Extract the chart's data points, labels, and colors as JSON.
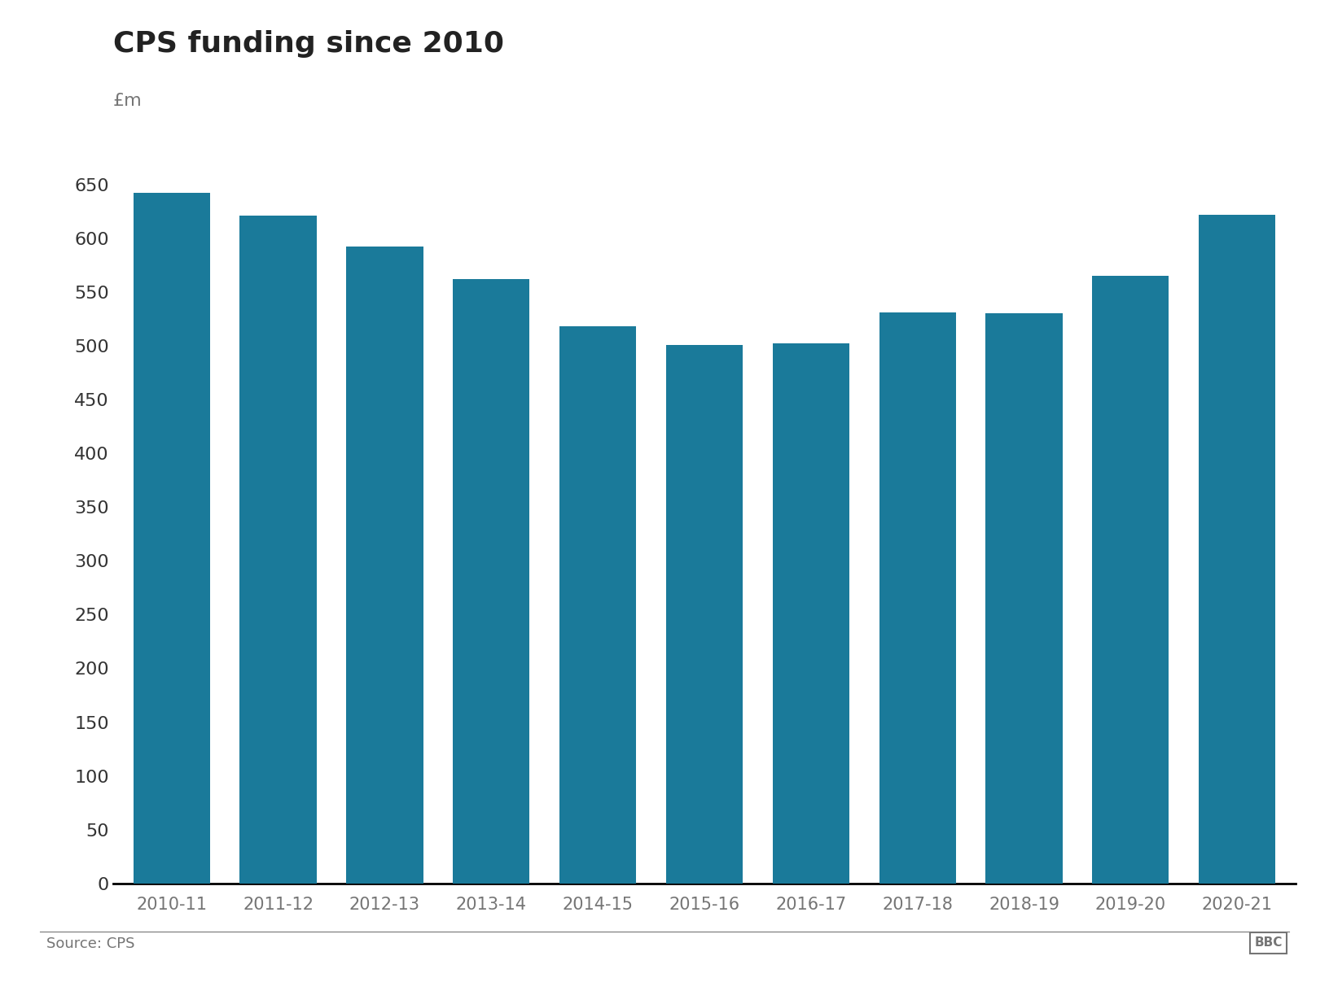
{
  "title": "CPS funding since 2010",
  "ylabel": "£m",
  "categories": [
    "2010-11",
    "2011-12",
    "2012-13",
    "2013-14",
    "2014-15",
    "2015-16",
    "2016-17",
    "2017-18",
    "2018-19",
    "2019-20",
    "2020-21"
  ],
  "values": [
    642,
    621,
    592,
    562,
    518,
    501,
    502,
    531,
    530,
    565,
    622
  ],
  "bar_color": "#1a7a9a",
  "ylim": [
    0,
    700
  ],
  "yticks": [
    0,
    50,
    100,
    150,
    200,
    250,
    300,
    350,
    400,
    450,
    500,
    550,
    600,
    650
  ],
  "title_fontsize": 26,
  "ylabel_fontsize": 16,
  "tick_fontsize": 16,
  "xtick_fontsize": 15,
  "source_text": "Source: CPS",
  "bbc_text": "BBC",
  "background_color": "#ffffff",
  "bottom_spine_color": "#000000",
  "text_color": "#222222",
  "source_color": "#757575",
  "ytick_color": "#333333"
}
